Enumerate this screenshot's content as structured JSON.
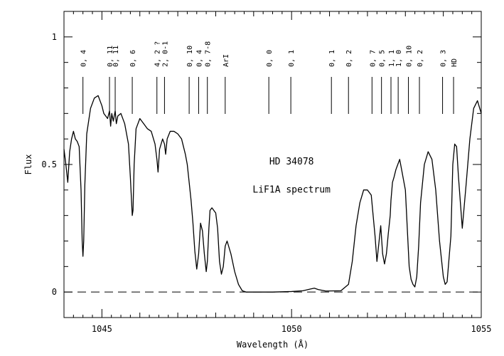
{
  "chart_data": {
    "type": "line",
    "xlabel": "Wavelength (Å)",
    "ylabel": "Flux",
    "xlim": [
      1044.0,
      1055.0
    ],
    "ylim": [
      -0.1,
      1.1
    ],
    "x_ticks": [
      1045,
      1050,
      1055
    ],
    "x_tick_labels": [
      "1045",
      "1050",
      "1055"
    ],
    "y_ticks": [
      0,
      0.5,
      1
    ],
    "y_tick_labels": [
      "0",
      "0.5",
      "1"
    ],
    "grid": false,
    "annotations": [
      {
        "text": "HD 34078",
        "x": 1050.0,
        "y": 0.5
      },
      {
        "text": "LiF1A spectrum",
        "x": 1050.0,
        "y": 0.39
      }
    ],
    "zero_line": {
      "y": 0,
      "style": "dashed"
    },
    "line_ids": [
      {
        "label": "0, 4",
        "x": 1044.5
      },
      {
        "label": "0, 11",
        "x": 1045.2
      },
      {
        "label": "0, 11",
        "x": 1045.35
      },
      {
        "label": "0, 6",
        "x": 1045.8
      },
      {
        "label": "4, 2 ?",
        "x": 1046.45
      },
      {
        "label": "2, 0-1",
        "x": 1046.65
      },
      {
        "label": "0, 10",
        "x": 1047.3
      },
      {
        "label": "0, 4",
        "x": 1047.55
      },
      {
        "label": "0, 7-8",
        "x": 1047.78
      },
      {
        "label": "ArI",
        "x": 1048.25
      },
      {
        "label": "0, 0",
        "x": 1049.4
      },
      {
        "label": "0, 1",
        "x": 1049.98
      },
      {
        "label": "0, 1",
        "x": 1051.05
      },
      {
        "label": "0, 2",
        "x": 1051.5
      },
      {
        "label": "0, 7",
        "x": 1052.12
      },
      {
        "label": "0, 5",
        "x": 1052.37
      },
      {
        "label": "1, 1",
        "x": 1052.62
      },
      {
        "label": "1, 0",
        "x": 1052.81
      },
      {
        "label": "0, 10",
        "x": 1053.08
      },
      {
        "label": "0, 2",
        "x": 1053.37
      },
      {
        "label": "0, 3",
        "x": 1053.98
      },
      {
        "label": "HD",
        "x": 1054.27
      }
    ],
    "series": [
      {
        "x": [
          1044.0,
          1044.05,
          1044.1,
          1044.15,
          1044.2,
          1044.25,
          1044.3,
          1044.35,
          1044.4,
          1044.45,
          1044.48,
          1044.5,
          1044.52,
          1044.55,
          1044.6,
          1044.7,
          1044.8,
          1044.9,
          1044.95,
          1045.0,
          1045.05,
          1045.1,
          1045.15,
          1045.2,
          1045.23,
          1045.26,
          1045.3,
          1045.35,
          1045.38,
          1045.42,
          1045.5,
          1045.6,
          1045.7,
          1045.75,
          1045.8,
          1045.82,
          1045.85,
          1045.9,
          1046.0,
          1046.1,
          1046.2,
          1046.3,
          1046.4,
          1046.45,
          1046.48,
          1046.52,
          1046.6,
          1046.65,
          1046.68,
          1046.72,
          1046.8,
          1046.9,
          1047.0,
          1047.1,
          1047.2,
          1047.25,
          1047.3,
          1047.35,
          1047.4,
          1047.45,
          1047.5,
          1047.55,
          1047.6,
          1047.65,
          1047.7,
          1047.75,
          1047.78,
          1047.82,
          1047.85,
          1047.9,
          1048.0,
          1048.05,
          1048.1,
          1048.15,
          1048.2,
          1048.25,
          1048.3,
          1048.4,
          1048.5,
          1048.6,
          1048.7,
          1048.8,
          1048.9,
          1049.0,
          1049.5,
          1050.0,
          1050.3,
          1050.5,
          1050.6,
          1050.7,
          1050.9,
          1051.3,
          1051.5,
          1051.6,
          1051.7,
          1051.8,
          1051.9,
          1052.0,
          1052.1,
          1052.15,
          1052.2,
          1052.25,
          1052.3,
          1052.35,
          1052.4,
          1052.45,
          1052.5,
          1052.55,
          1052.6,
          1052.62,
          1052.66,
          1052.7,
          1052.75,
          1052.8,
          1052.85,
          1052.9,
          1053.0,
          1053.05,
          1053.1,
          1053.15,
          1053.2,
          1053.25,
          1053.3,
          1053.35,
          1053.4,
          1053.5,
          1053.6,
          1053.7,
          1053.8,
          1053.9,
          1054.0,
          1054.05,
          1054.1,
          1054.2,
          1054.25,
          1054.3,
          1054.35,
          1054.4,
          1054.5,
          1054.6,
          1054.7,
          1054.8,
          1054.9,
          1055.0
        ],
        "y": [
          0.56,
          0.5,
          0.43,
          0.55,
          0.6,
          0.63,
          0.6,
          0.59,
          0.57,
          0.4,
          0.2,
          0.14,
          0.2,
          0.42,
          0.62,
          0.72,
          0.76,
          0.77,
          0.75,
          0.73,
          0.7,
          0.69,
          0.68,
          0.71,
          0.65,
          0.7,
          0.67,
          0.71,
          0.66,
          0.69,
          0.7,
          0.66,
          0.58,
          0.45,
          0.3,
          0.32,
          0.5,
          0.64,
          0.68,
          0.66,
          0.64,
          0.63,
          0.58,
          0.52,
          0.47,
          0.56,
          0.6,
          0.58,
          0.54,
          0.6,
          0.63,
          0.63,
          0.62,
          0.6,
          0.54,
          0.5,
          0.43,
          0.36,
          0.27,
          0.16,
          0.09,
          0.15,
          0.27,
          0.24,
          0.15,
          0.08,
          0.12,
          0.25,
          0.32,
          0.33,
          0.31,
          0.25,
          0.12,
          0.07,
          0.1,
          0.18,
          0.2,
          0.15,
          0.08,
          0.03,
          0.005,
          0.0,
          0.0,
          0.0,
          0.0,
          0.002,
          0.005,
          0.012,
          0.015,
          0.01,
          0.004,
          0.005,
          0.03,
          0.12,
          0.26,
          0.35,
          0.4,
          0.4,
          0.38,
          0.3,
          0.22,
          0.12,
          0.19,
          0.26,
          0.15,
          0.11,
          0.15,
          0.23,
          0.3,
          0.36,
          0.43,
          0.45,
          0.48,
          0.5,
          0.52,
          0.48,
          0.4,
          0.25,
          0.1,
          0.05,
          0.03,
          0.02,
          0.06,
          0.18,
          0.35,
          0.5,
          0.55,
          0.52,
          0.4,
          0.2,
          0.06,
          0.03,
          0.04,
          0.22,
          0.5,
          0.58,
          0.57,
          0.45,
          0.25,
          0.42,
          0.6,
          0.72,
          0.75,
          0.7
        ]
      }
    ]
  }
}
